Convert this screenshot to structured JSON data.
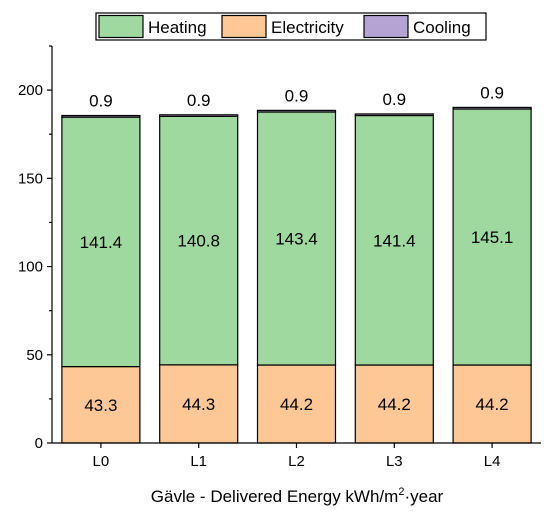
{
  "chart_data": {
    "type": "bar",
    "stacked": true,
    "categories": [
      "L0",
      "L1",
      "L2",
      "L3",
      "L4"
    ],
    "series": [
      {
        "name": "Electricity",
        "values": [
          43.3,
          44.3,
          44.2,
          44.2,
          44.2
        ],
        "color": "#fdc896"
      },
      {
        "name": "Heating",
        "values": [
          141.4,
          140.8,
          143.4,
          141.4,
          145.1
        ],
        "color": "#9fd99f"
      },
      {
        "name": "Cooling",
        "values": [
          0.9,
          0.9,
          0.9,
          0.9,
          0.9
        ],
        "color": "#b5a3d4"
      }
    ],
    "legend_order": [
      "Heating",
      "Electricity",
      "Cooling"
    ],
    "legend_position": "top-center",
    "xlabel": {
      "main": "Gävle - Delivered Energy kWh/m",
      "superscript": "2",
      "suffix": "·year"
    },
    "ylabel": "",
    "ylim": [
      0,
      225
    ],
    "yticks": [
      0,
      50,
      100,
      150,
      200
    ],
    "grid": false
  }
}
